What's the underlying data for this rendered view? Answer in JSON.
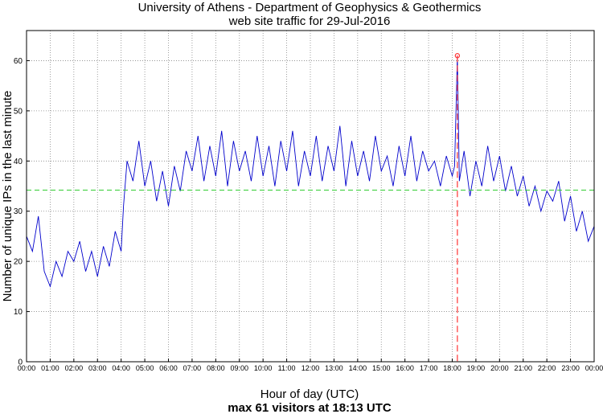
{
  "chart_data": {
    "type": "line",
    "title": "University of Athens - Department of Geophysics & Geothermics",
    "subtitle": "web site traffic for 29-Jul-2016",
    "xlabel": "Hour of day (UTC)",
    "ylabel": "Number of unique IPs in the last minute",
    "footer": "max 61 visitors at 18:13 UTC",
    "x_tick_labels": [
      "00:00",
      "01:00",
      "02:00",
      "03:00",
      "04:00",
      "05:00",
      "06:00",
      "07:00",
      "08:00",
      "09:00",
      "10:00",
      "11:00",
      "12:00",
      "13:00",
      "14:00",
      "15:00",
      "16:00",
      "17:00",
      "18:00",
      "19:00",
      "20:00",
      "21:00",
      "22:00",
      "23:00",
      "00:00"
    ],
    "y_ticks": [
      0,
      10,
      20,
      30,
      40,
      50,
      60
    ],
    "xlim": [
      0,
      24
    ],
    "ylim": [
      0,
      66
    ],
    "grid": true,
    "mean_line": {
      "value": 34.2,
      "color": "#33cc33"
    },
    "max_marker": {
      "x": 18.2167,
      "y": 61,
      "color": "#ff3333"
    },
    "series": [
      {
        "color": "#0000cc",
        "x": [
          0.0,
          0.25,
          0.5,
          0.75,
          1.0,
          1.25,
          1.5,
          1.75,
          2.0,
          2.25,
          2.5,
          2.75,
          3.0,
          3.25,
          3.5,
          3.75,
          4.0,
          4.1,
          4.25,
          4.5,
          4.75,
          5.0,
          5.25,
          5.5,
          5.75,
          6.0,
          6.25,
          6.5,
          6.75,
          7.0,
          7.25,
          7.5,
          7.75,
          8.0,
          8.25,
          8.5,
          8.75,
          9.0,
          9.25,
          9.5,
          9.75,
          10.0,
          10.25,
          10.5,
          10.75,
          11.0,
          11.25,
          11.5,
          11.75,
          12.0,
          12.25,
          12.5,
          12.75,
          13.0,
          13.25,
          13.5,
          13.75,
          14.0,
          14.25,
          14.5,
          14.75,
          15.0,
          15.25,
          15.5,
          15.75,
          16.0,
          16.25,
          16.5,
          16.75,
          17.0,
          17.25,
          17.5,
          17.75,
          18.0,
          18.1,
          18.2167,
          18.3,
          18.5,
          18.75,
          19.0,
          19.25,
          19.5,
          19.75,
          20.0,
          20.25,
          20.5,
          20.75,
          21.0,
          21.25,
          21.5,
          21.75,
          22.0,
          22.25,
          22.5,
          22.75,
          23.0,
          23.25,
          23.5,
          23.75,
          24.0
        ],
        "values": [
          25,
          22,
          29,
          18,
          15,
          20,
          17,
          22,
          20,
          24,
          18,
          22,
          17,
          23,
          19,
          26,
          22,
          31,
          40,
          36,
          44,
          35,
          40,
          32,
          38,
          31,
          39,
          34,
          42,
          38,
          45,
          36,
          43,
          37,
          46,
          35,
          44,
          38,
          42,
          36,
          45,
          37,
          43,
          35,
          44,
          38,
          46,
          35,
          42,
          37,
          45,
          36,
          43,
          38,
          47,
          35,
          44,
          37,
          42,
          36,
          45,
          38,
          41,
          35,
          43,
          37,
          45,
          36,
          42,
          38,
          40,
          35,
          41,
          37,
          39,
          61,
          36,
          42,
          33,
          40,
          35,
          43,
          36,
          41,
          34,
          39,
          33,
          37,
          31,
          35,
          30,
          34,
          32,
          36,
          28,
          33,
          26,
          30,
          24,
          27
        ]
      }
    ]
  }
}
